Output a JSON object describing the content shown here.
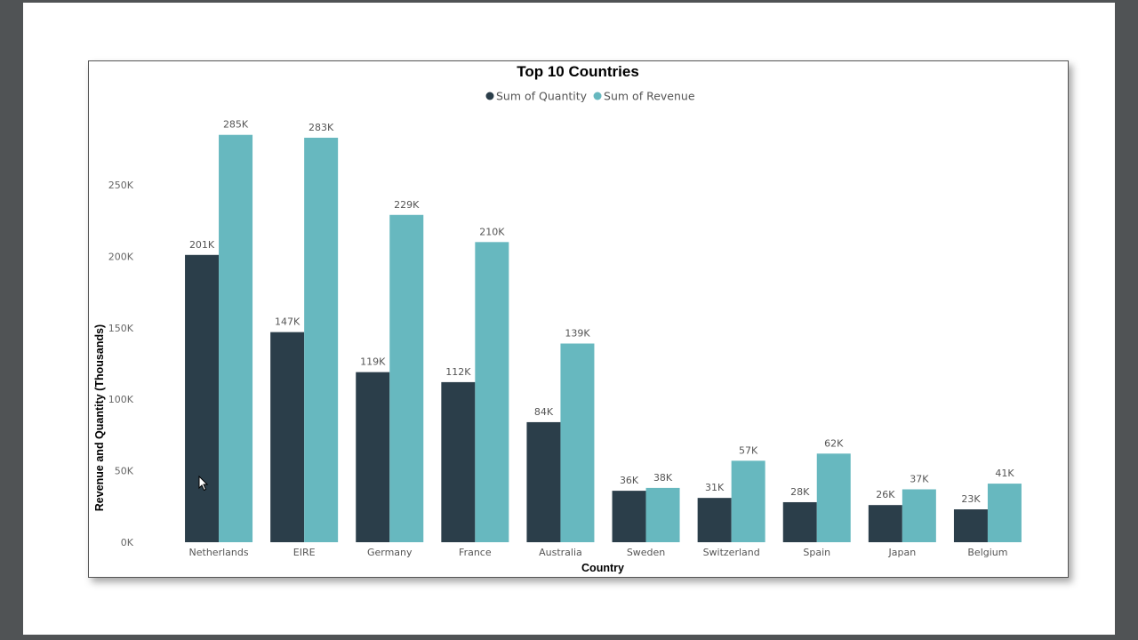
{
  "chart_data": {
    "type": "bar",
    "title": "Top 10 Countries",
    "xlabel": "Country",
    "ylabel": "Revenue and Quantity (Thousands)",
    "ylim": [
      0,
      300
    ],
    "yticks": [
      0,
      50,
      100,
      150,
      200,
      250
    ],
    "ytick_labels": [
      "0K",
      "50K",
      "100K",
      "150K",
      "200K",
      "250K"
    ],
    "legend_position": "top-center",
    "grid": false,
    "categories": [
      "Netherlands",
      "EIRE",
      "Germany",
      "France",
      "Australia",
      "Sweden",
      "Switzerland",
      "Spain",
      "Japan",
      "Belgium"
    ],
    "series": [
      {
        "name": "Sum of Quantity",
        "color": "#2B3E4A",
        "values": [
          201,
          147,
          119,
          112,
          84,
          36,
          31,
          28,
          26,
          23
        ],
        "labels": [
          "201K",
          "147K",
          "119K",
          "112K",
          "84K",
          "36K",
          "31K",
          "28K",
          "26K",
          "23K"
        ]
      },
      {
        "name": "Sum of Revenue",
        "color": "#67B8BF",
        "values": [
          285,
          283,
          229,
          210,
          139,
          38,
          57,
          62,
          37,
          41
        ],
        "labels": [
          "285K",
          "283K",
          "229K",
          "210K",
          "139K",
          "38K",
          "57K",
          "62K",
          "37K",
          "41K"
        ]
      }
    ]
  }
}
